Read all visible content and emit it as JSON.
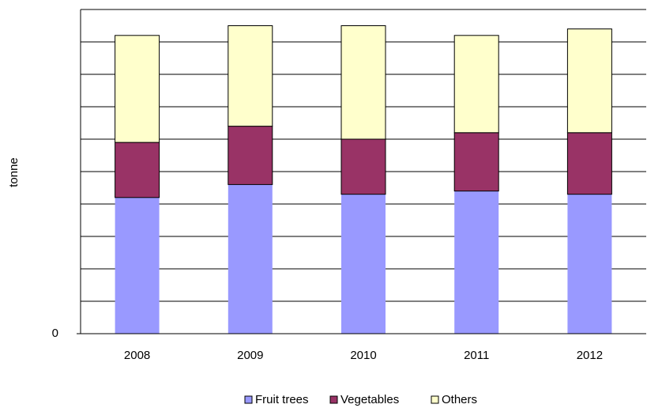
{
  "chart_data": {
    "type": "stacked_bar",
    "y_label": "tonne",
    "categories": [
      "2008",
      "2009",
      "2010",
      "2011",
      "2012"
    ],
    "series": [
      {
        "name": "Fruit trees",
        "color": "#9999ff",
        "values": [
          4.2,
          4.6,
          4.3,
          4.4,
          4.3
        ]
      },
      {
        "name": "Vegetables",
        "color": "#993366",
        "values": [
          1.7,
          1.8,
          1.7,
          1.8,
          1.9
        ]
      },
      {
        "name": "Others",
        "color": "#ffffcc",
        "values": [
          3.3,
          3.1,
          3.5,
          3.0,
          3.2
        ]
      }
    ],
    "ylim": [
      0,
      10
    ],
    "yticks": [
      0
    ],
    "ygrid": [
      1,
      2,
      3,
      4,
      5,
      6,
      7,
      8,
      9,
      10
    ],
    "grid": true,
    "legend": "bottom"
  }
}
